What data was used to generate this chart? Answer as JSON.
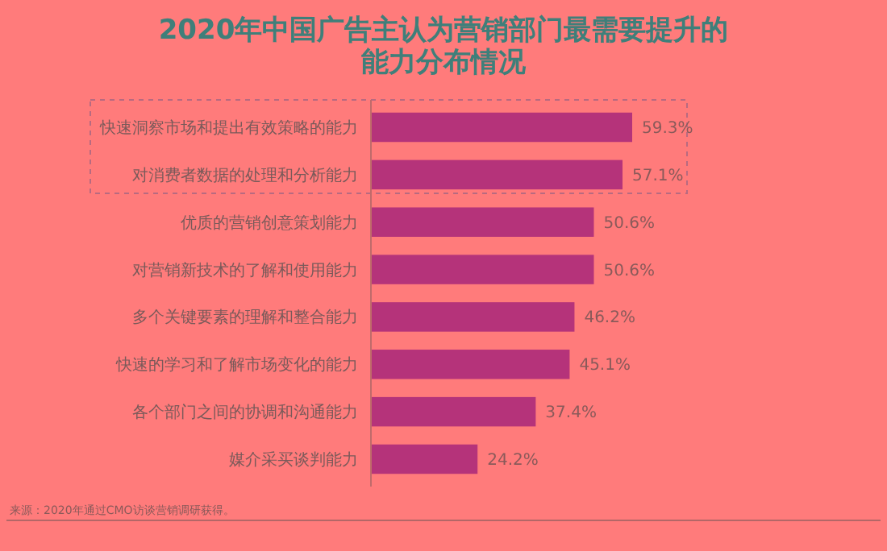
{
  "chart_data": {
    "type": "bar",
    "orientation": "horizontal",
    "title": "2020年中国广告主认为营销部门最需要提升的能力分布情况",
    "categories": [
      "快速洞察市场和提出有效策略的能力",
      "对消费者数据的处理和分析能力",
      "优质的营销创意策划能力",
      "对营销新技术的了解和使用能力",
      "多个关键要素的理解和整合能力",
      "快速的学习和了解市场变化的能力",
      "各个部门之间的协调和沟通能力",
      "媒介采买谈判能力"
    ],
    "values": [
      59.3,
      57.1,
      50.6,
      50.6,
      46.2,
      45.1,
      37.4,
      24.2
    ],
    "value_labels": [
      "59.3%",
      "57.1%",
      "50.6%",
      "50.6%",
      "46.2%",
      "45.1%",
      "37.4%",
      "24.2%"
    ],
    "color": "#b5337a",
    "annotations": [
      "来源：2020年通过CMO访谈营销调研获得。"
    ]
  }
}
